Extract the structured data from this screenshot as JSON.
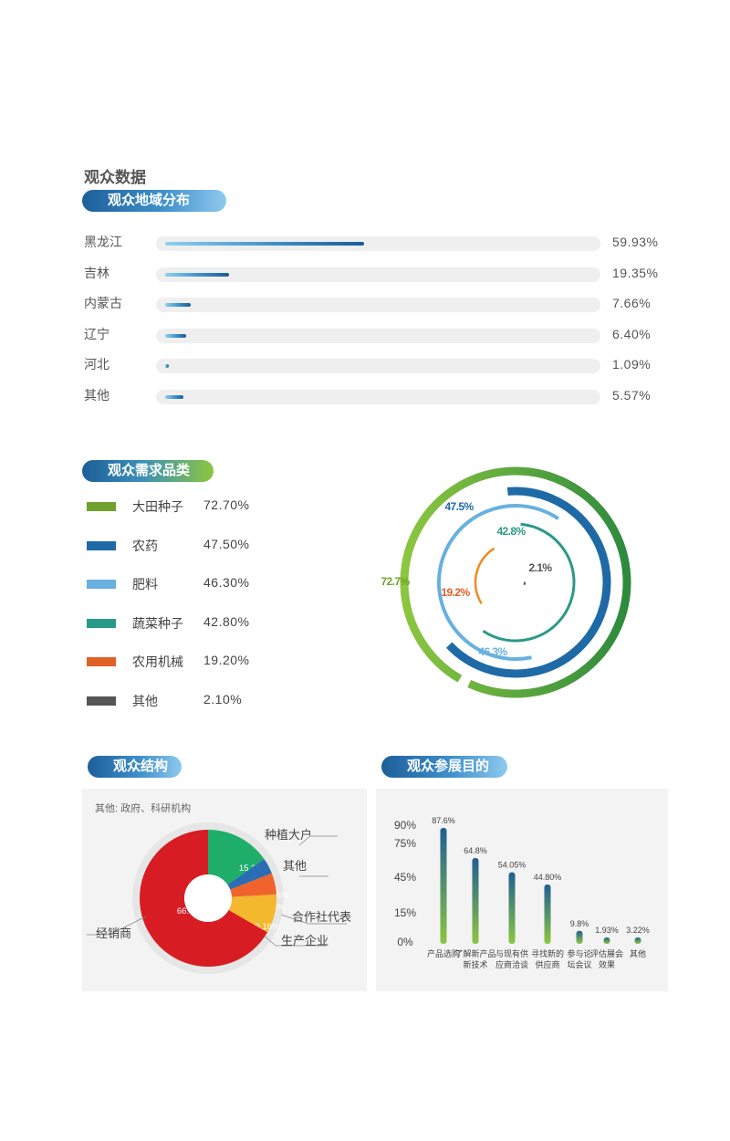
{
  "page_title": "观众数据",
  "sections": {
    "region": "观众地域分布",
    "demand": "观众需求品类",
    "structure": "观众结构",
    "purpose": "观众参展目的"
  },
  "chart_data": [
    {
      "type": "bar",
      "orientation": "horizontal",
      "categories": [
        "黑龙江",
        "吉林",
        "内蒙古",
        "辽宁",
        "河北",
        "其他"
      ],
      "values": [
        59.93,
        19.35,
        7.66,
        6.4,
        1.09,
        5.57
      ],
      "value_labels": [
        "59.93%",
        "19.35%",
        "7.66%",
        "6.40%",
        "1.09%",
        "5.57%"
      ],
      "xlim": [
        0,
        100
      ]
    },
    {
      "type": "radial-bar",
      "categories": [
        "大田种子",
        "农药",
        "肥料",
        "蔬菜种子",
        "农用机械",
        "其他"
      ],
      "values": [
        72.7,
        47.5,
        46.3,
        42.8,
        19.2,
        2.1
      ],
      "legend_labels": [
        "72.70%",
        "47.50%",
        "46.30%",
        "42.80%",
        "19.20%",
        "2.10%"
      ],
      "ring_labels": [
        "72.7%",
        "47.5%",
        "46.3%",
        "42.8%",
        "19.2%",
        "2.1%"
      ],
      "colors": [
        "#6fa22e",
        "#1f6aa6",
        "#68b0e0",
        "#2a9a88",
        "#e06027",
        "#555555"
      ]
    },
    {
      "type": "pie",
      "note": "其他: 政府、科研机构",
      "slices": [
        {
          "label": "种植大户",
          "value": 15.32,
          "value_label": "15.32%",
          "color": "#1fae6a"
        },
        {
          "label": "其他",
          "value": 3.75,
          "value_label": "3.75%",
          "color": "#2a6db3"
        },
        {
          "label": "合作社代表",
          "value": 5.08,
          "value_label": "5.08%",
          "color": "#f0632c"
        },
        {
          "label": "生产企业",
          "value": 9.16,
          "value_label": "9.16%",
          "color": "#f4b82e"
        },
        {
          "label": "经销商",
          "value": 66.69,
          "value_label": "66.69%",
          "color": "#d71c24"
        }
      ]
    },
    {
      "type": "bar",
      "categories": [
        "产品选购",
        "了解新产品新技术",
        "与现有供应商洽谈",
        "寻找新的供应商",
        "参与论坛会议",
        "评估展会效果",
        "其他"
      ],
      "category_lines": [
        [
          "产品选购"
        ],
        [
          "了解新产品",
          "新技术"
        ],
        [
          "与现有供",
          "应商洽谈"
        ],
        [
          "寻找新的",
          "供应商"
        ],
        [
          "参与论",
          "坛会议"
        ],
        [
          "评估展会",
          "效果"
        ],
        [
          "其他"
        ]
      ],
      "values": [
        87.6,
        64.8,
        54.05,
        44.8,
        9.8,
        1.93,
        3.22
      ],
      "value_labels": [
        "87.6%",
        "64.8%",
        "54.05%",
        "44.80%",
        "9.8%",
        "1.93%",
        "3.22%"
      ],
      "yticks": [
        "90%",
        "75%",
        "45%",
        "15%",
        "0%"
      ]
    }
  ]
}
